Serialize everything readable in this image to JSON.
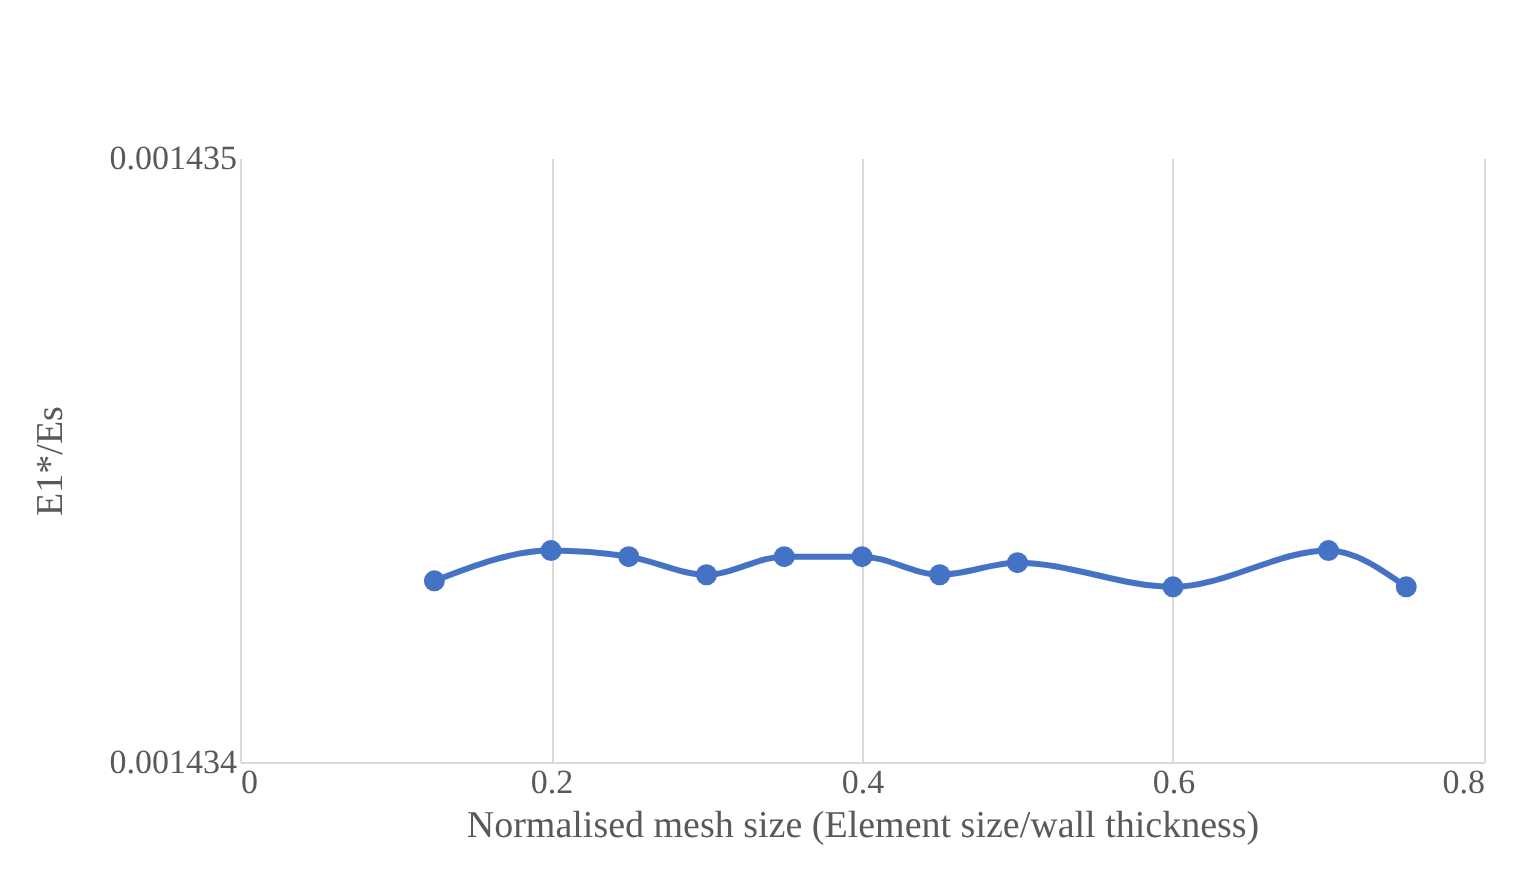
{
  "chart_data": {
    "type": "line",
    "xlabel": "Normalised mesh size (Element size/wall thickness)",
    "ylabel": "E1*/Es",
    "x": [
      0.125,
      0.2,
      0.25,
      0.3,
      0.35,
      0.4,
      0.45,
      0.5,
      0.6,
      0.7,
      0.75
    ],
    "series": [
      {
        "color": "#4472c4",
        "values": [
          0.0014343,
          0.00143435,
          0.00143434,
          0.00143431,
          0.00143434,
          0.00143434,
          0.00143431,
          0.00143433,
          0.00143429,
          0.00143435,
          0.00143429
        ]
      }
    ],
    "xlim": [
      0,
      0.8
    ],
    "xticks": [
      0,
      0.2,
      0.4,
      0.6,
      0.8
    ],
    "ylim": [
      0.001434,
      0.001435
    ],
    "yticks": [
      0.001434,
      0.001435
    ],
    "grid": "x",
    "marker": "circle",
    "line_style": "solid"
  }
}
